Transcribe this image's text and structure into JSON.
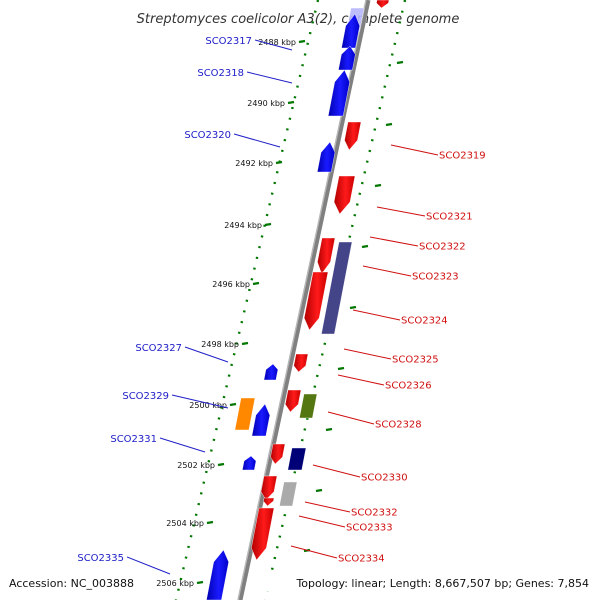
{
  "title": "Streptomyces coelicolor A3(2), complete genome",
  "footer": {
    "accession": "Accession: NC_003888",
    "summary": "Topology: linear; Length: 8,667,507 bp; Genes: 7,854"
  },
  "colors": {
    "forward": "#0000ee",
    "reverse": "#ee0000",
    "tick": "#007700",
    "backbone": "#808080",
    "left_label": "#2020c8",
    "right_label": "#d01010"
  },
  "kbp_ticks": [
    "2488 kbp",
    "2490 kbp",
    "2492 kbp",
    "2494 kbp",
    "2496 kbp",
    "2498 kbp",
    "2500 kbp",
    "2502 kbp",
    "2504 kbp",
    "2506 kbp"
  ],
  "genes_left": [
    "SCO2317",
    "SCO2318",
    "SCO2320",
    "SCO2327",
    "SCO2329",
    "SCO2331",
    "SCO2335"
  ],
  "genes_right": [
    "SCO2319",
    "SCO2321",
    "SCO2322",
    "SCO2323",
    "SCO2324",
    "SCO2325",
    "SCO2326",
    "SCO2328",
    "SCO2330",
    "SCO2332",
    "SCO2333",
    "SCO2334"
  ],
  "feature_colors": {
    "orange": "#ff8800",
    "olive": "#557711",
    "navy": "#000077",
    "slate": "#444488",
    "grey": "#aaaaaa"
  }
}
